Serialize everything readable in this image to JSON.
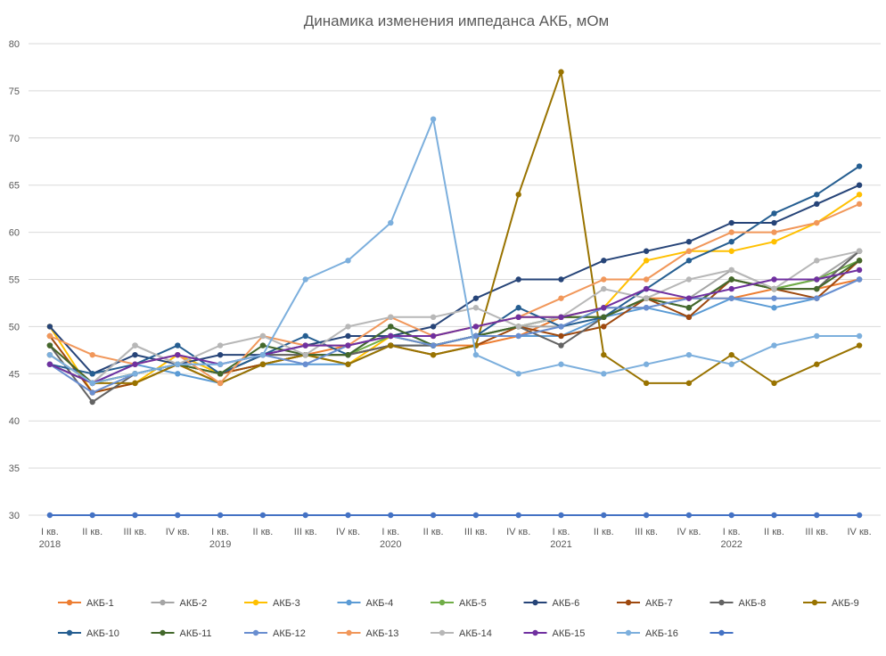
{
  "chart_data": {
    "type": "line",
    "title": "Динамика изменения импеданса АКБ, мОм",
    "xlabel": "",
    "ylabel": "",
    "ylim": [
      30,
      80
    ],
    "y_ticks": [
      30,
      35,
      40,
      45,
      50,
      55,
      60,
      65,
      70,
      75,
      80
    ],
    "grid": true,
    "legend_position": "bottom",
    "categories": [
      {
        "q": "I кв.",
        "year": "2018"
      },
      {
        "q": "II кв.",
        "year": ""
      },
      {
        "q": "III кв.",
        "year": ""
      },
      {
        "q": "IV кв.",
        "year": ""
      },
      {
        "q": "I кв.",
        "year": "2019"
      },
      {
        "q": "II кв.",
        "year": ""
      },
      {
        "q": "III кв.",
        "year": ""
      },
      {
        "q": "IV кв.",
        "year": ""
      },
      {
        "q": "I кв.",
        "year": "2020"
      },
      {
        "q": "II кв.",
        "year": ""
      },
      {
        "q": "III кв.",
        "year": ""
      },
      {
        "q": "IV кв.",
        "year": ""
      },
      {
        "q": "I кв.",
        "year": "2021"
      },
      {
        "q": "II кв.",
        "year": ""
      },
      {
        "q": "III кв.",
        "year": ""
      },
      {
        "q": "IV кв.",
        "year": ""
      },
      {
        "q": "I кв.",
        "year": "2022"
      },
      {
        "q": "II кв.",
        "year": ""
      },
      {
        "q": "III кв.",
        "year": ""
      },
      {
        "q": "IV кв.",
        "year": ""
      }
    ],
    "series": [
      {
        "name": "АКБ-1",
        "color": "#ED7D31",
        "values": [
          48,
          44,
          45,
          46,
          44,
          46,
          47,
          48,
          49,
          48,
          48,
          49,
          51,
          51,
          53,
          53,
          53,
          54,
          54,
          55
        ]
      },
      {
        "name": "АКБ-2",
        "color": "#A5A5A5",
        "values": [
          47,
          44,
          48,
          46,
          45,
          47,
          47,
          47,
          48,
          48,
          49,
          50,
          50,
          52,
          52,
          53,
          56,
          54,
          55,
          58
        ]
      },
      {
        "name": "АКБ-3",
        "color": "#FFC000",
        "values": [
          50,
          43,
          44,
          47,
          45,
          46,
          47,
          46,
          49,
          49,
          50,
          51,
          51,
          52,
          57,
          58,
          58,
          59,
          61,
          64
        ]
      },
      {
        "name": "АКБ-4",
        "color": "#5B9BD5",
        "values": [
          47,
          44,
          46,
          45,
          44,
          46,
          46,
          46,
          48,
          48,
          49,
          49,
          49,
          51,
          52,
          51,
          53,
          52,
          53,
          55
        ]
      },
      {
        "name": "АКБ-5",
        "color": "#70AD47",
        "values": [
          46,
          44,
          45,
          46,
          45,
          46,
          47,
          47,
          49,
          48,
          49,
          50,
          51,
          51,
          53,
          52,
          55,
          54,
          55,
          57
        ]
      },
      {
        "name": "АКБ-6",
        "color": "#264478",
        "values": [
          50,
          45,
          47,
          46,
          47,
          47,
          48,
          49,
          49,
          50,
          53,
          55,
          55,
          57,
          58,
          59,
          61,
          61,
          63,
          65
        ]
      },
      {
        "name": "АКБ-7",
        "color": "#9E480E",
        "values": [
          49,
          43,
          44,
          46,
          45,
          46,
          47,
          47,
          48,
          47,
          48,
          50,
          49,
          50,
          53,
          51,
          55,
          54,
          53,
          57
        ]
      },
      {
        "name": "АКБ-8",
        "color": "#636363",
        "values": [
          48,
          42,
          45,
          46,
          45,
          47,
          47,
          47,
          48,
          48,
          49,
          50,
          48,
          51,
          53,
          52,
          55,
          54,
          54,
          58
        ]
      },
      {
        "name": "АКБ-9",
        "color": "#997300",
        "values": [
          47,
          44,
          44,
          46,
          44,
          46,
          47,
          46,
          48,
          47,
          48,
          64,
          77,
          47,
          44,
          44,
          47,
          44,
          46,
          48
        ]
      },
      {
        "name": "АКБ-10",
        "color": "#255E91",
        "values": [
          46,
          45,
          46,
          48,
          45,
          47,
          49,
          47,
          50,
          48,
          49,
          52,
          50,
          51,
          54,
          57,
          59,
          62,
          64,
          67
        ]
      },
      {
        "name": "АКБ-11",
        "color": "#43682B",
        "values": [
          48,
          44,
          45,
          46,
          45,
          48,
          47,
          47,
          50,
          48,
          49,
          50,
          51,
          51,
          53,
          52,
          55,
          54,
          54,
          57
        ]
      },
      {
        "name": "АКБ-12",
        "color": "#698ED0",
        "values": [
          46,
          43,
          45,
          46,
          46,
          47,
          46,
          48,
          49,
          48,
          49,
          49,
          50,
          52,
          52,
          53,
          53,
          53,
          53,
          55
        ]
      },
      {
        "name": "АКБ-13",
        "color": "#F1975A",
        "values": [
          49,
          47,
          46,
          47,
          44,
          49,
          48,
          48,
          51,
          49,
          50,
          51,
          53,
          55,
          55,
          58,
          60,
          60,
          61,
          63
        ]
      },
      {
        "name": "АКБ-14",
        "color": "#B7B7B7",
        "values": [
          47,
          44,
          48,
          46,
          48,
          49,
          47,
          50,
          51,
          51,
          52,
          50,
          51,
          54,
          53,
          55,
          56,
          54,
          57,
          58
        ]
      },
      {
        "name": "АКБ-15",
        "color": "#7030A0",
        "values": [
          46,
          44,
          46,
          47,
          46,
          47,
          48,
          48,
          49,
          49,
          50,
          51,
          51,
          52,
          54,
          53,
          54,
          55,
          55,
          56
        ]
      },
      {
        "name": "АКБ-16",
        "color": "#7CAFDD",
        "values": [
          47,
          44,
          45,
          46,
          46,
          47,
          55,
          57,
          61,
          72,
          47,
          45,
          46,
          45,
          46,
          47,
          46,
          48,
          49,
          49
        ]
      },
      {
        "name": "",
        "color": "#4472C4",
        "values": [
          30,
          30,
          30,
          30,
          30,
          30,
          30,
          30,
          30,
          30,
          30,
          30,
          30,
          30,
          30,
          30,
          30,
          30,
          30,
          30
        ]
      }
    ]
  }
}
